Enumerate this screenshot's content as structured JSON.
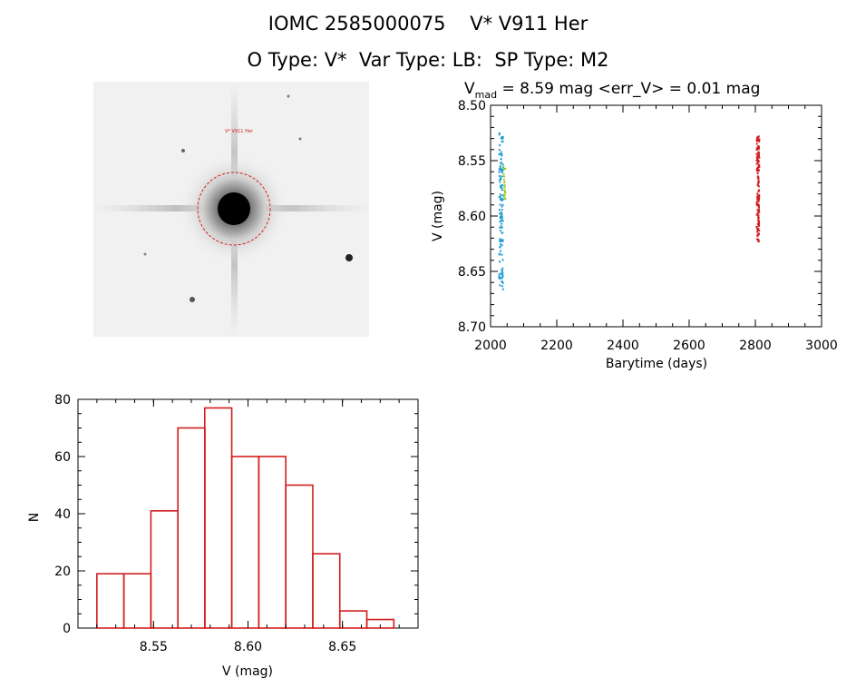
{
  "header": {
    "title_line1": "IOMC 2585000075    V* V911 Her",
    "title_line2": "O Type: V*  Var Type: LB:  SP Type: M2"
  },
  "chart_data": [
    {
      "type": "scatter",
      "title_main": "V",
      "title_sub": "mad",
      "title_rest": " = 8.59 mag <err_V> = 0.01 mag",
      "xlabel": "Barytime (days)",
      "ylabel": "V (mag)",
      "xlim": [
        2000,
        3000
      ],
      "ylim": [
        8.7,
        8.5
      ],
      "y_inverted": true,
      "xticks": [
        2000,
        2200,
        2400,
        2600,
        2800,
        3000
      ],
      "xtick_labels": [
        "2000",
        "2200",
        "2400",
        "2600",
        "2800",
        "3000"
      ],
      "yticks": [
        8.5,
        8.55,
        8.6,
        8.65,
        8.7
      ],
      "ytick_labels": [
        "8.50",
        "8.55",
        "8.60",
        "8.65",
        "8.70"
      ],
      "grid": false,
      "series": [
        {
          "color": "#1e9bd6",
          "x_center": 2032,
          "x_jitter": 6,
          "y_min": 8.525,
          "y_max": 8.667,
          "n": 120
        },
        {
          "color": "#9acd32",
          "x_center": 2042,
          "x_jitter": 3,
          "y_min": 8.555,
          "y_max": 8.585,
          "n": 25
        },
        {
          "color": "#d21e1e",
          "x_center": 2808,
          "x_jitter": 4,
          "y_min": 8.527,
          "y_max": 8.626,
          "n": 140
        }
      ]
    },
    {
      "type": "bar",
      "xlabel": "V (mag)",
      "ylabel": "N",
      "xlim": [
        8.51,
        8.69
      ],
      "ylim": [
        0,
        80
      ],
      "bin_width": 0.0143,
      "bin_starts": [
        8.52,
        8.5343,
        8.5486,
        8.5629,
        8.5771,
        8.5914,
        8.6057,
        8.62,
        8.6343,
        8.6486,
        8.6629
      ],
      "values": [
        19,
        19,
        41,
        70,
        77,
        60,
        60,
        50,
        26,
        6,
        3
      ],
      "xticks": [
        8.55,
        8.6,
        8.65
      ],
      "xtick_labels": [
        "8.55",
        "8.60",
        "8.65"
      ],
      "yticks": [
        0,
        20,
        40,
        60,
        80
      ],
      "ytick_labels": [
        "0",
        "20",
        "40",
        "60",
        "80"
      ],
      "bar_color": "#d21e1e",
      "grid": false
    }
  ],
  "finder_image": {
    "target_label": "V* V911 Her",
    "circle_color": "#d21e1e",
    "label_color": "#1a1aff"
  }
}
